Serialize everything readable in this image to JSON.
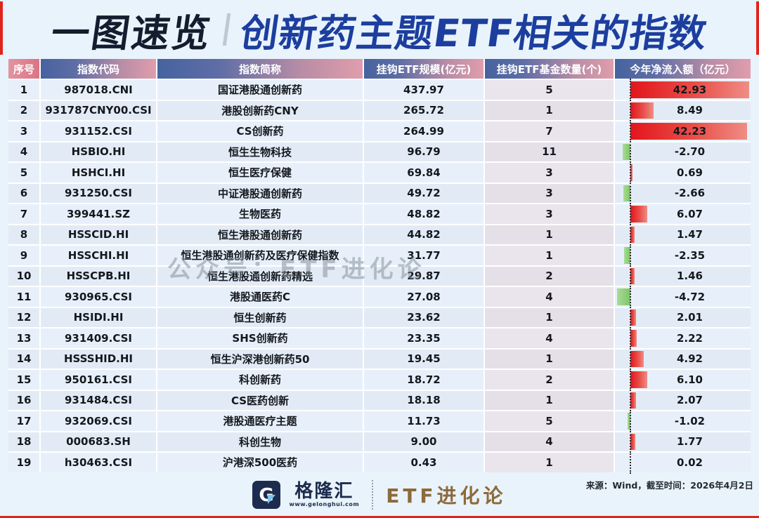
{
  "title": {
    "highlight": "一图速览",
    "main": "创新药主题ETF相关的指数"
  },
  "watermark": "公众号：ETF进化论",
  "colors": {
    "accent_red": "#e0241c",
    "title_highlight": "#131d2f",
    "title_main": "#1c3e9e",
    "positive_bar": "#e2151c",
    "negative_bar": "#7cc566",
    "header_gradient_left": "#46639e",
    "header_gradient_right": "#e09dac",
    "account_brown": "#8d6a3b"
  },
  "chart_data": {
    "type": "table",
    "title": "一图速览 创新药主题ETF相关的指数",
    "columns": [
      "序号",
      "指数代码",
      "指数简称",
      "挂钩ETF规模(亿元)",
      "挂钩ETF基金数量(个)",
      "今年净流入额（亿元）"
    ],
    "bar_column": "今年净流入额（亿元）",
    "bar_positive_color": "#e2151c",
    "bar_negative_color": "#7cc566",
    "rows": [
      [
        "1",
        "987018.CNI",
        "国证港股通创新药",
        "437.97",
        "5",
        "42.93"
      ],
      [
        "2",
        "931787CNY00.CSI",
        "港股创新药CNY",
        "265.72",
        "1",
        "8.49"
      ],
      [
        "3",
        "931152.CSI",
        "CS创新药",
        "264.99",
        "7",
        "42.23"
      ],
      [
        "4",
        "HSBIO.HI",
        "恒生生物科技",
        "96.79",
        "11",
        "-2.70"
      ],
      [
        "5",
        "HSHCI.HI",
        "恒生医疗保健",
        "69.84",
        "3",
        "0.69"
      ],
      [
        "6",
        "931250.CSI",
        "中证港股通创新药",
        "49.72",
        "3",
        "-2.66"
      ],
      [
        "7",
        "399441.SZ",
        "生物医药",
        "48.82",
        "3",
        "6.07"
      ],
      [
        "8",
        "HSSCID.HI",
        "恒生港股通创新药",
        "44.82",
        "1",
        "1.47"
      ],
      [
        "9",
        "HSSCHI.HI",
        "恒生港股通创新药及医疗保健指数",
        "31.77",
        "1",
        "-2.35"
      ],
      [
        "10",
        "HSSCPB.HI",
        "恒生港股通创新药精选",
        "29.87",
        "2",
        "1.46"
      ],
      [
        "11",
        "930965.CSI",
        "港股通医药C",
        "27.08",
        "4",
        "-4.72"
      ],
      [
        "12",
        "HSIDI.HI",
        "恒生创新药",
        "23.62",
        "1",
        "2.01"
      ],
      [
        "13",
        "931409.CSI",
        "SHS创新药",
        "23.35",
        "4",
        "2.22"
      ],
      [
        "14",
        "HSSSHID.HI",
        "恒生沪深港创新药50",
        "19.45",
        "1",
        "4.92"
      ],
      [
        "15",
        "950161.CSI",
        "科创新药",
        "18.72",
        "2",
        "6.10"
      ],
      [
        "16",
        "931484.CSI",
        "CS医药创新",
        "18.18",
        "1",
        "2.07"
      ],
      [
        "17",
        "932069.CSI",
        "港股通医疗主题",
        "11.73",
        "5",
        "-1.02"
      ],
      [
        "18",
        "000683.SH",
        "科创生物",
        "9.00",
        "4",
        "1.77"
      ],
      [
        "19",
        "h30463.CSI",
        "沪港深500医药",
        "0.43",
        "1",
        "0.02"
      ]
    ]
  },
  "footer": {
    "brand": "格隆汇",
    "brand_url": "www.gelonghui.com",
    "account": "ETF进化论",
    "source": "来源：Wind，截至时间：2026年4月2日"
  }
}
